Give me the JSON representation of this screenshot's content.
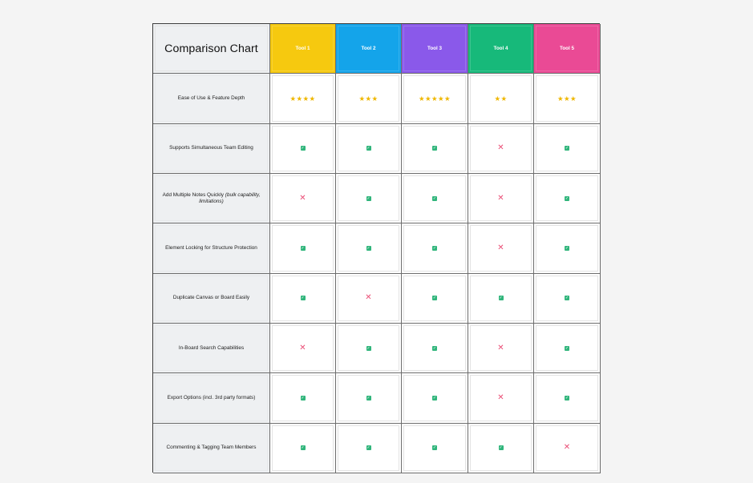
{
  "header": {
    "title": "Comparison Chart"
  },
  "tools": [
    {
      "label": "Tool 1",
      "color": "#f6c90f"
    },
    {
      "label": "Tool 2",
      "color": "#14a4ea"
    },
    {
      "label": "Tool 3",
      "color": "#8a59ea"
    },
    {
      "label": "Tool 4",
      "color": "#17b97a"
    },
    {
      "label": "Tool 5",
      "color": "#ea4a95"
    }
  ],
  "rows": [
    {
      "id": "ease-of-use",
      "label": "Ease of Use & Feature Depth",
      "type": "stars",
      "values": [
        "★★★★",
        "★★★",
        "★★★★★",
        "★★",
        "★★★"
      ]
    },
    {
      "id": "simultaneous-editing",
      "label": "Supports Simultaneous Team Editing",
      "type": "status",
      "values": [
        "check",
        "check",
        "check",
        "cross",
        "check"
      ]
    },
    {
      "id": "bulk-notes",
      "label": "Add Multiple Notes Quickly",
      "label_note": "(bulk capability, limitations)",
      "type": "status",
      "values": [
        "cross",
        "check",
        "check",
        "cross",
        "check"
      ]
    },
    {
      "id": "element-locking",
      "label": "Element Locking for Structure Protection",
      "type": "status",
      "values": [
        "check",
        "check",
        "check",
        "cross",
        "check"
      ]
    },
    {
      "id": "duplicate-canvas",
      "label": "Duplicate Canvas or Board Easily",
      "type": "status",
      "values": [
        "check",
        "cross",
        "check",
        "check",
        "check"
      ]
    },
    {
      "id": "in-board-search",
      "label": "In-Board Search Capabilities",
      "type": "status",
      "values": [
        "cross",
        "check",
        "check",
        "cross",
        "check"
      ]
    },
    {
      "id": "export-options",
      "label": "Export Options (incl. 3rd party formats)",
      "type": "status",
      "values": [
        "check",
        "check",
        "check",
        "cross",
        "check"
      ]
    },
    {
      "id": "commenting-tagging",
      "label": "Commenting & Tagging Team Members",
      "type": "status",
      "values": [
        "check",
        "check",
        "check",
        "check",
        "cross"
      ]
    }
  ],
  "status_glyphs": {
    "check": "✓",
    "cross": "✕"
  },
  "colors": {
    "label_bg": "#eef0f2",
    "check": "#30b57b",
    "cross": "#ea4d75",
    "star": "#efb700"
  }
}
